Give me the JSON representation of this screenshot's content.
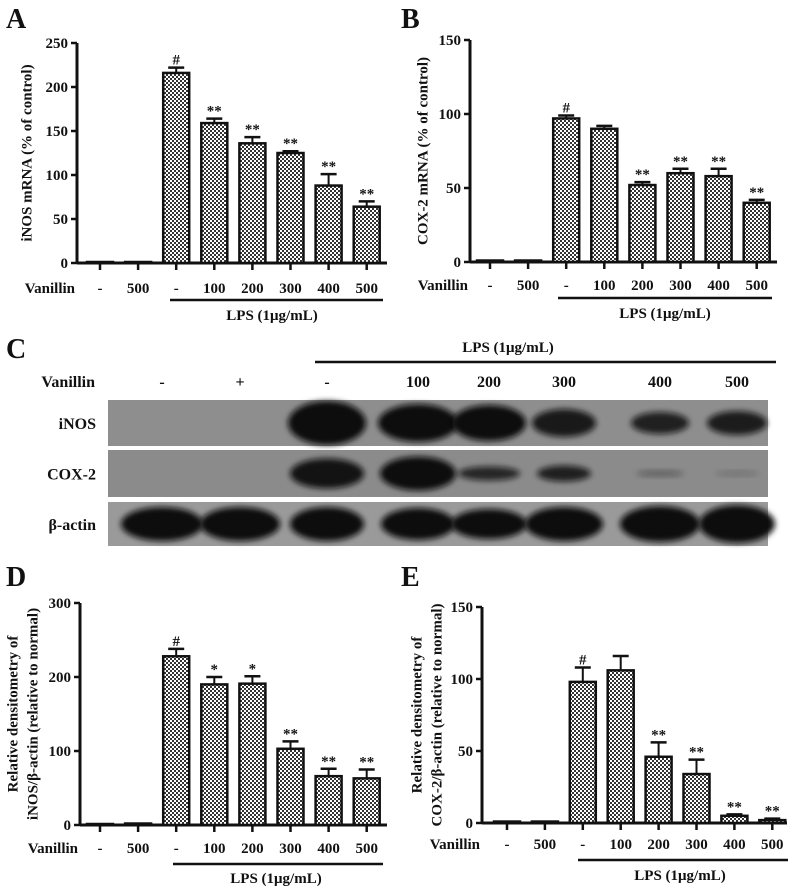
{
  "chart_data": [
    {
      "panel": "A",
      "type": "bar",
      "ylabel": "iNOS mRNA (% of control)",
      "ylim": [
        0,
        250
      ],
      "yticks": [
        0,
        50,
        100,
        150,
        200,
        250
      ],
      "category_label": "Vanillin",
      "categories": [
        "-",
        "500",
        "-",
        "100",
        "200",
        "300",
        "400",
        "500"
      ],
      "group_label": "LPS (1μg/mL)",
      "values": [
        1,
        1,
        216,
        159,
        136,
        125,
        88,
        64
      ],
      "errors": [
        0,
        0,
        6,
        5,
        7,
        2,
        13,
        6
      ],
      "annotations": [
        "",
        "",
        "#",
        "**",
        "**",
        "**",
        "**",
        "**"
      ]
    },
    {
      "panel": "B",
      "type": "bar",
      "ylabel": "COX-2 mRNA (% of control)",
      "ylim": [
        0,
        150
      ],
      "yticks": [
        0,
        50,
        100,
        150
      ],
      "category_label": "Vanillin",
      "categories": [
        "-",
        "500",
        "-",
        "100",
        "200",
        "300",
        "400",
        "500"
      ],
      "group_label": "LPS (1μg/mL)",
      "values": [
        1,
        1,
        97,
        90,
        52,
        60,
        58,
        40
      ],
      "errors": [
        0,
        0,
        2,
        2,
        2,
        3,
        5,
        2
      ],
      "annotations": [
        "",
        "",
        "#",
        "",
        "**",
        "**",
        "**",
        "**"
      ]
    },
    {
      "panel": "D",
      "type": "bar",
      "ylabel": [
        "Relative densitometry of",
        "iNOS/β-actin (relative to normal)"
      ],
      "ylim": [
        0,
        300
      ],
      "yticks": [
        0,
        100,
        200,
        300
      ],
      "category_label": "Vanillin",
      "categories": [
        "-",
        "500",
        "-",
        "100",
        "200",
        "300",
        "400",
        "500"
      ],
      "group_label": "LPS (1μg/mL)",
      "values": [
        1,
        2,
        228,
        190,
        191,
        103,
        66,
        63
      ],
      "errors": [
        0,
        0,
        10,
        10,
        10,
        10,
        10,
        12
      ],
      "annotations": [
        "",
        "",
        "#",
        "*",
        "*",
        "**",
        "**",
        "**"
      ]
    },
    {
      "panel": "E",
      "type": "bar",
      "ylabel": [
        "Relative densitometry of",
        "COX-2/β-actin (relative to normal)"
      ],
      "ylim": [
        0,
        150
      ],
      "yticks": [
        0,
        50,
        100,
        150
      ],
      "category_label": "Vanillin",
      "categories": [
        "-",
        "500",
        "-",
        "100",
        "200",
        "300",
        "400",
        "500"
      ],
      "group_label": "LPS (1μg/mL)",
      "values": [
        1,
        1,
        98,
        106,
        46,
        34,
        5,
        2
      ],
      "errors": [
        0,
        0,
        10,
        10,
        10,
        10,
        1,
        1
      ],
      "annotations": [
        "",
        "",
        "#",
        "",
        "**",
        "**",
        "**",
        "**"
      ]
    }
  ],
  "blot": {
    "panel": "C",
    "group_label": "LPS (1μg/mL)",
    "lane_label": "Vanillin",
    "lanes": [
      "-",
      "+",
      "-",
      "100",
      "200",
      "300",
      "400",
      "500"
    ],
    "rows": [
      {
        "label": "iNOS",
        "band_intensity": [
          0,
          0,
          1,
          1,
          1,
          0.9,
          0.85,
          0.88
        ]
      },
      {
        "label": "COX-2",
        "band_intensity": [
          0,
          0,
          0.95,
          1,
          0.8,
          0.85,
          0.35,
          0.2
        ]
      },
      {
        "label": "β-actin",
        "band_intensity": [
          1,
          1,
          1,
          1,
          1,
          1,
          1,
          1
        ]
      }
    ]
  },
  "colors": {
    "bar_fill_dark": "#333333",
    "bar_fill_light": "#ffffff",
    "axis": "#111111",
    "blot_background": "#8e8e8e",
    "band": "#111111"
  }
}
